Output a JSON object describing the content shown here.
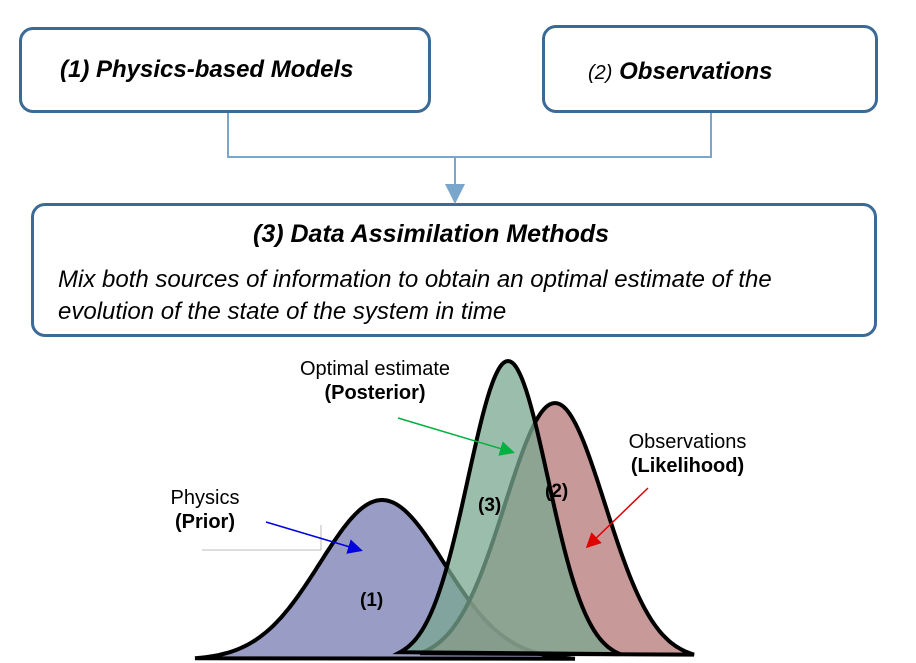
{
  "boxes": {
    "physics": "(1) Physics-based Models",
    "observations_num": "(2)",
    "observations": "Observations",
    "da_title": "(3) Data Assimilation Methods",
    "da_desc": "Mix both sources of information to obtain an optimal estimate of the evolution of the state of the system in time"
  },
  "labels": {
    "posterior_line1": "Optimal estimate",
    "posterior_line2": "(Posterior)",
    "likelihood_line1": "Observations",
    "likelihood_line2": "(Likelihood)",
    "prior_line1": "Physics",
    "prior_line2": "(Prior)",
    "curve1": "(1)",
    "curve2": "(2)",
    "curve3": "(3)"
  },
  "colors": {
    "box_border": "#3b6a96",
    "connector": "#7aa6cc",
    "prior_fill": "#8e92bf",
    "likelihood_fill": "#c08b8b",
    "posterior_fill": "#8fb5a0",
    "arrow_prior": "#0000e0",
    "arrow_posterior": "#00b040",
    "arrow_likelihood": "#e00000"
  }
}
